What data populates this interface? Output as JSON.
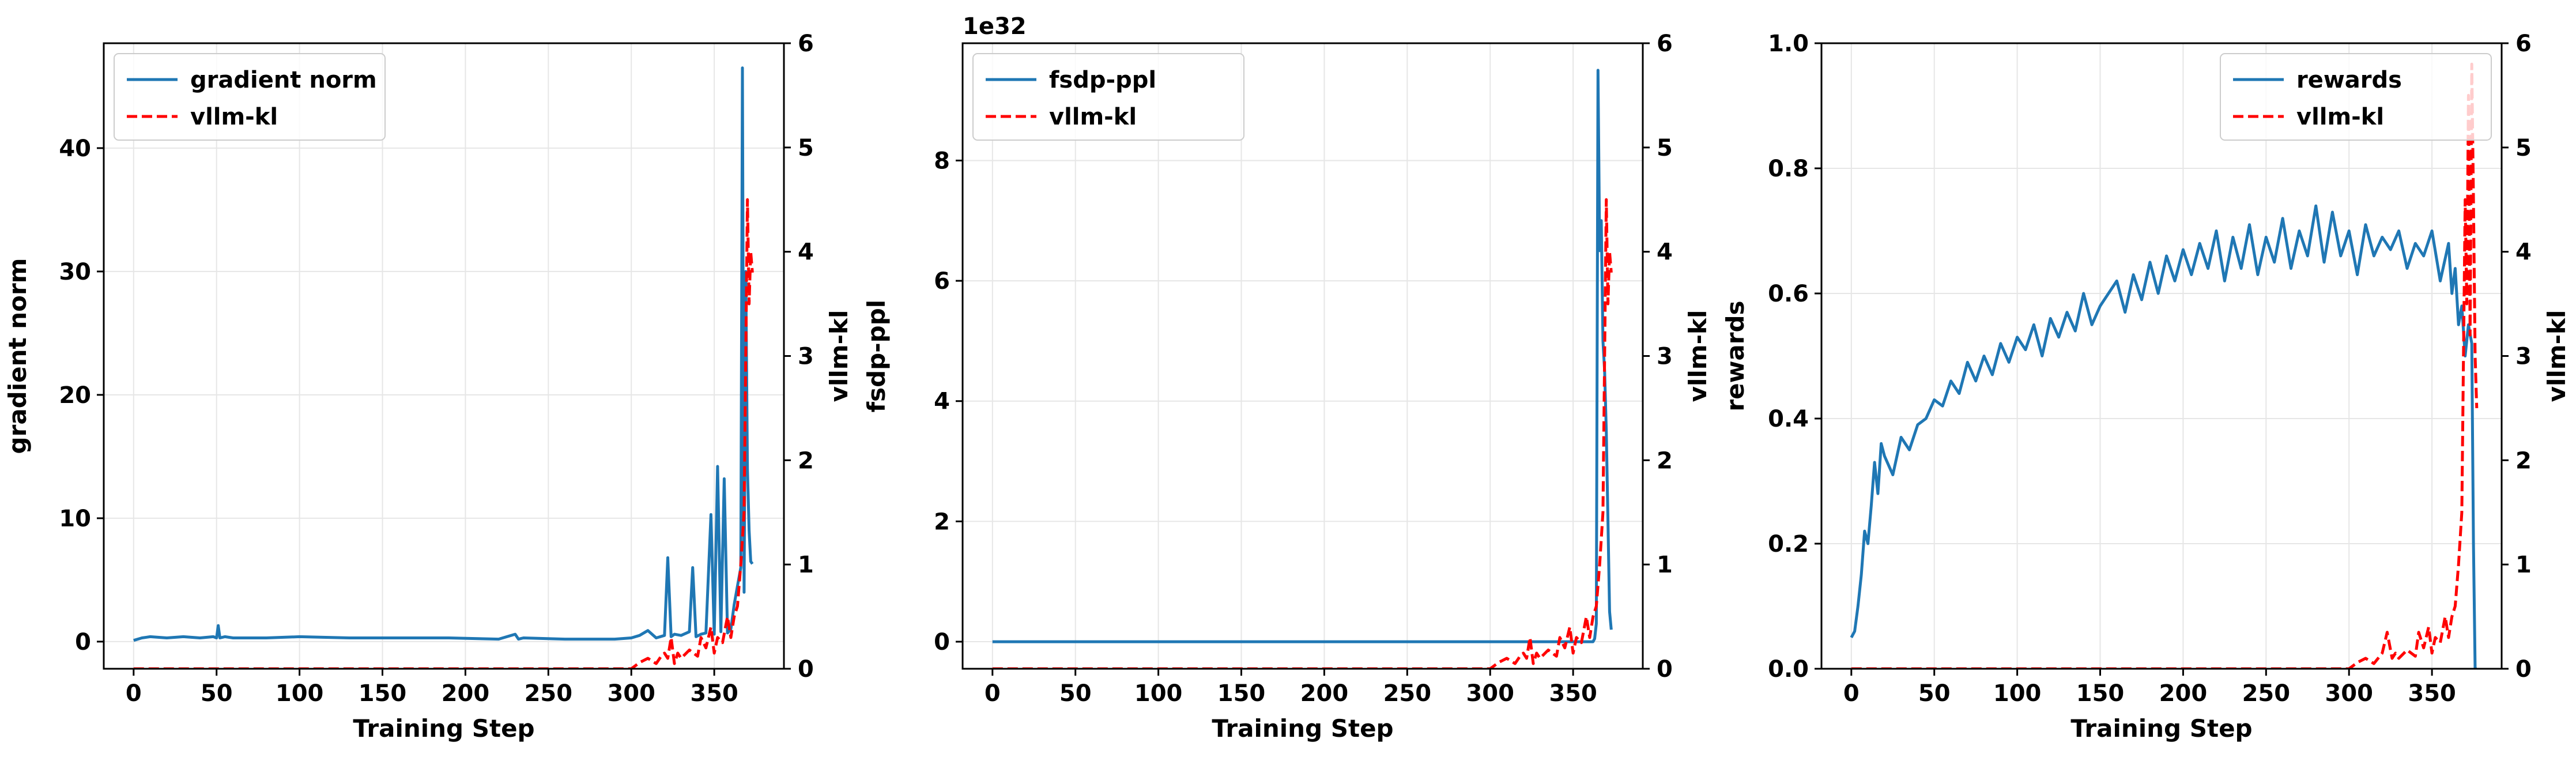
{
  "colors": {
    "primary": "#1f77b4",
    "kl": "#ff0000",
    "grid": "#e6e6e6"
  },
  "chart_data": [
    {
      "type": "line",
      "xlabel": "Training Step",
      "ylabel": "gradient norm",
      "y2label": "vllm-kl",
      "xlim": [
        -18,
        392
      ],
      "ylim": [
        -2.2,
        48.5
      ],
      "y2lim": [
        0,
        6
      ],
      "xticks": [
        0,
        50,
        100,
        150,
        200,
        250,
        300,
        350
      ],
      "yticks": [
        0,
        10,
        20,
        30,
        40
      ],
      "y2ticks": [
        0,
        1,
        2,
        3,
        4,
        5,
        6
      ],
      "offset_label": "",
      "legend_position": "upper-left",
      "grid": true,
      "series": [
        {
          "name": "gradient norm",
          "axis": "left",
          "style": "solid",
          "x": [
            0,
            5,
            10,
            20,
            30,
            40,
            48,
            50,
            51,
            52,
            55,
            60,
            80,
            100,
            130,
            160,
            190,
            220,
            230,
            232,
            235,
            260,
            290,
            300,
            305,
            310,
            315,
            320,
            322,
            324,
            326,
            330,
            335,
            337,
            339,
            342,
            345,
            348,
            350,
            352,
            354,
            356,
            358,
            360,
            362,
            364,
            366,
            367,
            368,
            369,
            370,
            371,
            372,
            373
          ],
          "y": [
            0.1,
            0.3,
            0.4,
            0.3,
            0.4,
            0.3,
            0.4,
            0.3,
            1.3,
            0.3,
            0.4,
            0.3,
            0.3,
            0.4,
            0.3,
            0.3,
            0.3,
            0.2,
            0.6,
            0.2,
            0.3,
            0.2,
            0.2,
            0.3,
            0.5,
            0.9,
            0.3,
            0.5,
            6.8,
            0.4,
            0.6,
            0.5,
            0.8,
            6.0,
            0.4,
            0.6,
            0.7,
            10.3,
            0.6,
            14.2,
            0.8,
            13.2,
            0.7,
            1.0,
            3.0,
            4.5,
            6.0,
            46.5,
            4.0,
            30.0,
            14.0,
            9.0,
            6.5,
            6.3
          ]
        },
        {
          "name": "vllm-kl",
          "axis": "right",
          "style": "dashed",
          "x": [
            0,
            100,
            200,
            300,
            305,
            310,
            315,
            318,
            320,
            322,
            324,
            326,
            328,
            330,
            335,
            340,
            342,
            345,
            348,
            350,
            352,
            355,
            358,
            360,
            362,
            364,
            366,
            368,
            369,
            370,
            371,
            372,
            373
          ],
          "y": [
            0.0,
            0.0,
            0.0,
            0.0,
            0.06,
            0.1,
            0.05,
            0.12,
            0.15,
            0.1,
            0.3,
            0.05,
            0.15,
            0.1,
            0.18,
            0.12,
            0.3,
            0.2,
            0.4,
            0.15,
            0.3,
            0.25,
            0.5,
            0.3,
            0.5,
            0.6,
            1.0,
            1.5,
            3.0,
            4.5,
            3.5,
            4.0,
            3.8
          ]
        }
      ]
    },
    {
      "type": "line",
      "xlabel": "Training Step",
      "ylabel": "fsdp-ppl",
      "y2label": "vllm-kl",
      "xlim": [
        -18,
        392
      ],
      "ylim": [
        -0.45,
        9.95
      ],
      "y2lim": [
        0,
        6
      ],
      "xticks": [
        0,
        50,
        100,
        150,
        200,
        250,
        300,
        350
      ],
      "yticks": [
        0,
        2,
        4,
        6,
        8
      ],
      "y2ticks": [
        0,
        1,
        2,
        3,
        4,
        5,
        6
      ],
      "offset_label": "1e32",
      "legend_position": "upper-left",
      "grid": true,
      "series": [
        {
          "name": "fsdp-ppl",
          "axis": "left",
          "style": "solid",
          "x": [
            0,
            100,
            200,
            300,
            360,
            362,
            363,
            364,
            365,
            366,
            367,
            368,
            369,
            370,
            371,
            372,
            373
          ],
          "y": [
            0,
            0,
            0,
            0,
            0,
            0,
            0.05,
            0.3,
            9.5,
            6.5,
            7.0,
            5.0,
            4.5,
            3.5,
            2.0,
            0.5,
            0.2
          ]
        },
        {
          "name": "vllm-kl",
          "axis": "right",
          "style": "dashed",
          "x": [
            0,
            100,
            200,
            300,
            305,
            310,
            315,
            318,
            320,
            322,
            324,
            326,
            328,
            330,
            335,
            340,
            342,
            345,
            348,
            350,
            352,
            355,
            358,
            360,
            362,
            364,
            366,
            368,
            369,
            370,
            371,
            372,
            373
          ],
          "y": [
            0.0,
            0.0,
            0.0,
            0.0,
            0.06,
            0.1,
            0.05,
            0.12,
            0.15,
            0.1,
            0.3,
            0.05,
            0.15,
            0.1,
            0.18,
            0.12,
            0.3,
            0.2,
            0.4,
            0.15,
            0.3,
            0.25,
            0.5,
            0.3,
            0.5,
            0.6,
            1.0,
            1.5,
            3.0,
            4.5,
            3.5,
            4.0,
            3.8
          ]
        }
      ]
    },
    {
      "type": "line",
      "xlabel": "Training Step",
      "ylabel": "rewards",
      "y2label": "vllm-kl",
      "xlim": [
        -18,
        392
      ],
      "ylim": [
        0,
        1.0
      ],
      "y2lim": [
        0,
        6
      ],
      "xticks": [
        0,
        50,
        100,
        150,
        200,
        250,
        300,
        350
      ],
      "yticks": [
        0.0,
        0.2,
        0.4,
        0.6,
        0.8,
        1.0
      ],
      "y2ticks": [
        0,
        1,
        2,
        3,
        4,
        5,
        6
      ],
      "offset_label": "",
      "legend_position": "upper-right",
      "grid": true,
      "series": [
        {
          "name": "rewards",
          "axis": "left",
          "style": "solid",
          "x": [
            0,
            2,
            4,
            6,
            8,
            10,
            12,
            14,
            16,
            18,
            20,
            25,
            30,
            35,
            40,
            45,
            50,
            55,
            60,
            65,
            70,
            75,
            80,
            85,
            90,
            95,
            100,
            105,
            110,
            115,
            120,
            125,
            130,
            135,
            140,
            145,
            150,
            155,
            160,
            165,
            170,
            175,
            180,
            185,
            190,
            195,
            200,
            205,
            210,
            215,
            220,
            225,
            230,
            235,
            240,
            245,
            250,
            255,
            260,
            265,
            270,
            275,
            280,
            285,
            290,
            295,
            300,
            305,
            310,
            315,
            320,
            325,
            330,
            335,
            340,
            345,
            350,
            355,
            360,
            362,
            364,
            366,
            368,
            370,
            372,
            374,
            375,
            376,
            377
          ],
          "y": [
            0.05,
            0.06,
            0.1,
            0.15,
            0.22,
            0.2,
            0.26,
            0.33,
            0.28,
            0.36,
            0.34,
            0.31,
            0.37,
            0.35,
            0.39,
            0.4,
            0.43,
            0.42,
            0.46,
            0.44,
            0.49,
            0.46,
            0.5,
            0.47,
            0.52,
            0.49,
            0.53,
            0.51,
            0.55,
            0.5,
            0.56,
            0.53,
            0.57,
            0.54,
            0.6,
            0.55,
            0.58,
            0.6,
            0.62,
            0.57,
            0.63,
            0.59,
            0.65,
            0.6,
            0.66,
            0.62,
            0.67,
            0.63,
            0.68,
            0.64,
            0.7,
            0.62,
            0.69,
            0.64,
            0.71,
            0.63,
            0.69,
            0.65,
            0.72,
            0.64,
            0.7,
            0.66,
            0.74,
            0.65,
            0.73,
            0.66,
            0.7,
            0.63,
            0.71,
            0.66,
            0.69,
            0.67,
            0.7,
            0.64,
            0.68,
            0.66,
            0.7,
            0.62,
            0.68,
            0.6,
            0.64,
            0.55,
            0.58,
            0.5,
            0.55,
            0.52,
            0.2,
            0.0,
            0.0
          ]
        },
        {
          "name": "vllm-kl",
          "axis": "right",
          "style": "dashed",
          "x": [
            0,
            100,
            200,
            300,
            305,
            310,
            315,
            320,
            323,
            326,
            328,
            330,
            335,
            340,
            342,
            345,
            348,
            350,
            352,
            355,
            358,
            360,
            362,
            364,
            366,
            368,
            369,
            370,
            371,
            372,
            373,
            374,
            375,
            376,
            377
          ],
          "y": [
            0.0,
            0.0,
            0.0,
            0.0,
            0.06,
            0.1,
            0.05,
            0.15,
            0.35,
            0.1,
            0.15,
            0.1,
            0.18,
            0.12,
            0.35,
            0.2,
            0.4,
            0.15,
            0.3,
            0.25,
            0.5,
            0.3,
            0.5,
            0.6,
            1.0,
            1.5,
            3.0,
            4.5,
            3.5,
            5.5,
            3.2,
            5.8,
            4.5,
            3.0,
            2.5
          ]
        }
      ]
    }
  ]
}
